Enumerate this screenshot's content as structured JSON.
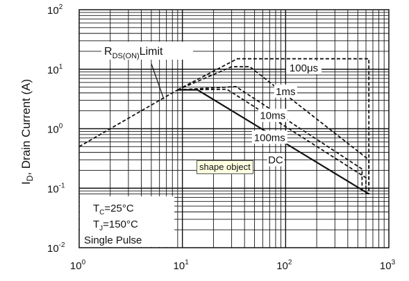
{
  "chart_data": {
    "type": "line",
    "ylabel": "I",
    "ylabel_sub": "D",
    "ylabel_rest": ", Drain Current (A)",
    "xscale": "log",
    "yscale": "log",
    "xlim": [
      1,
      1000
    ],
    "ylim": [
      0.01,
      100
    ],
    "grid": true,
    "x_ticks": [
      {
        "value": 1,
        "base": "10",
        "exp": "0"
      },
      {
        "value": 10,
        "base": "10",
        "exp": "1"
      },
      {
        "value": 100,
        "base": "10",
        "exp": "2"
      },
      {
        "value": 1000,
        "base": "10",
        "exp": "3"
      }
    ],
    "y_ticks": [
      {
        "value": 100,
        "base": "10",
        "exp": "2"
      },
      {
        "value": 10,
        "base": "10",
        "exp": "1"
      },
      {
        "value": 1,
        "base": "10",
        "exp": "0"
      },
      {
        "value": 0.1,
        "base": "10",
        "exp": "-1"
      },
      {
        "value": 0.01,
        "base": "10",
        "exp": "-2"
      }
    ],
    "limit_label": {
      "main": "R",
      "sub": "DS(ON)",
      "rest": "Limit"
    },
    "conditions": [
      {
        "main": "T",
        "sub": "C",
        "rest": "=25°C"
      },
      {
        "main": "T",
        "sub": "J",
        "rest": "=150°C"
      },
      {
        "main": "Single Pulse",
        "sub": "",
        "rest": ""
      }
    ],
    "series": [
      {
        "name": "R",
        "label": "",
        "style": "dashed",
        "points": [
          [
            1,
            0.5
          ],
          [
            9,
            4.5
          ]
        ]
      },
      {
        "name": "100μs",
        "label": "100μs",
        "style": "dashed",
        "points": [
          [
            9,
            4.5
          ],
          [
            34,
            15
          ],
          [
            640,
            15
          ],
          [
            640,
            0.08
          ]
        ]
      },
      {
        "name": "1ms",
        "label": "1ms",
        "style": "dashed",
        "points": [
          [
            9,
            4.5
          ],
          [
            30,
            11
          ],
          [
            45,
            11
          ],
          [
            640,
            0.3
          ],
          [
            640,
            0.08
          ]
        ]
      },
      {
        "name": "10ms",
        "label": "10ms",
        "style": "dashed",
        "points": [
          [
            9,
            4.5
          ],
          [
            33,
            5.1
          ],
          [
            550,
            0.21
          ],
          [
            550,
            0.08
          ]
        ]
      },
      {
        "name": "100ms",
        "label": "100ms",
        "style": "dashed",
        "points": [
          [
            9,
            4.5
          ],
          [
            27,
            4.6
          ],
          [
            600,
            0.15
          ],
          [
            600,
            0.08
          ]
        ]
      },
      {
        "name": "DC",
        "label": "DC",
        "style": "solid",
        "points": [
          [
            9,
            4.5
          ],
          [
            14,
            4.5
          ],
          [
            640,
            0.08
          ]
        ]
      }
    ]
  },
  "tooltip": {
    "text": "shape object"
  }
}
